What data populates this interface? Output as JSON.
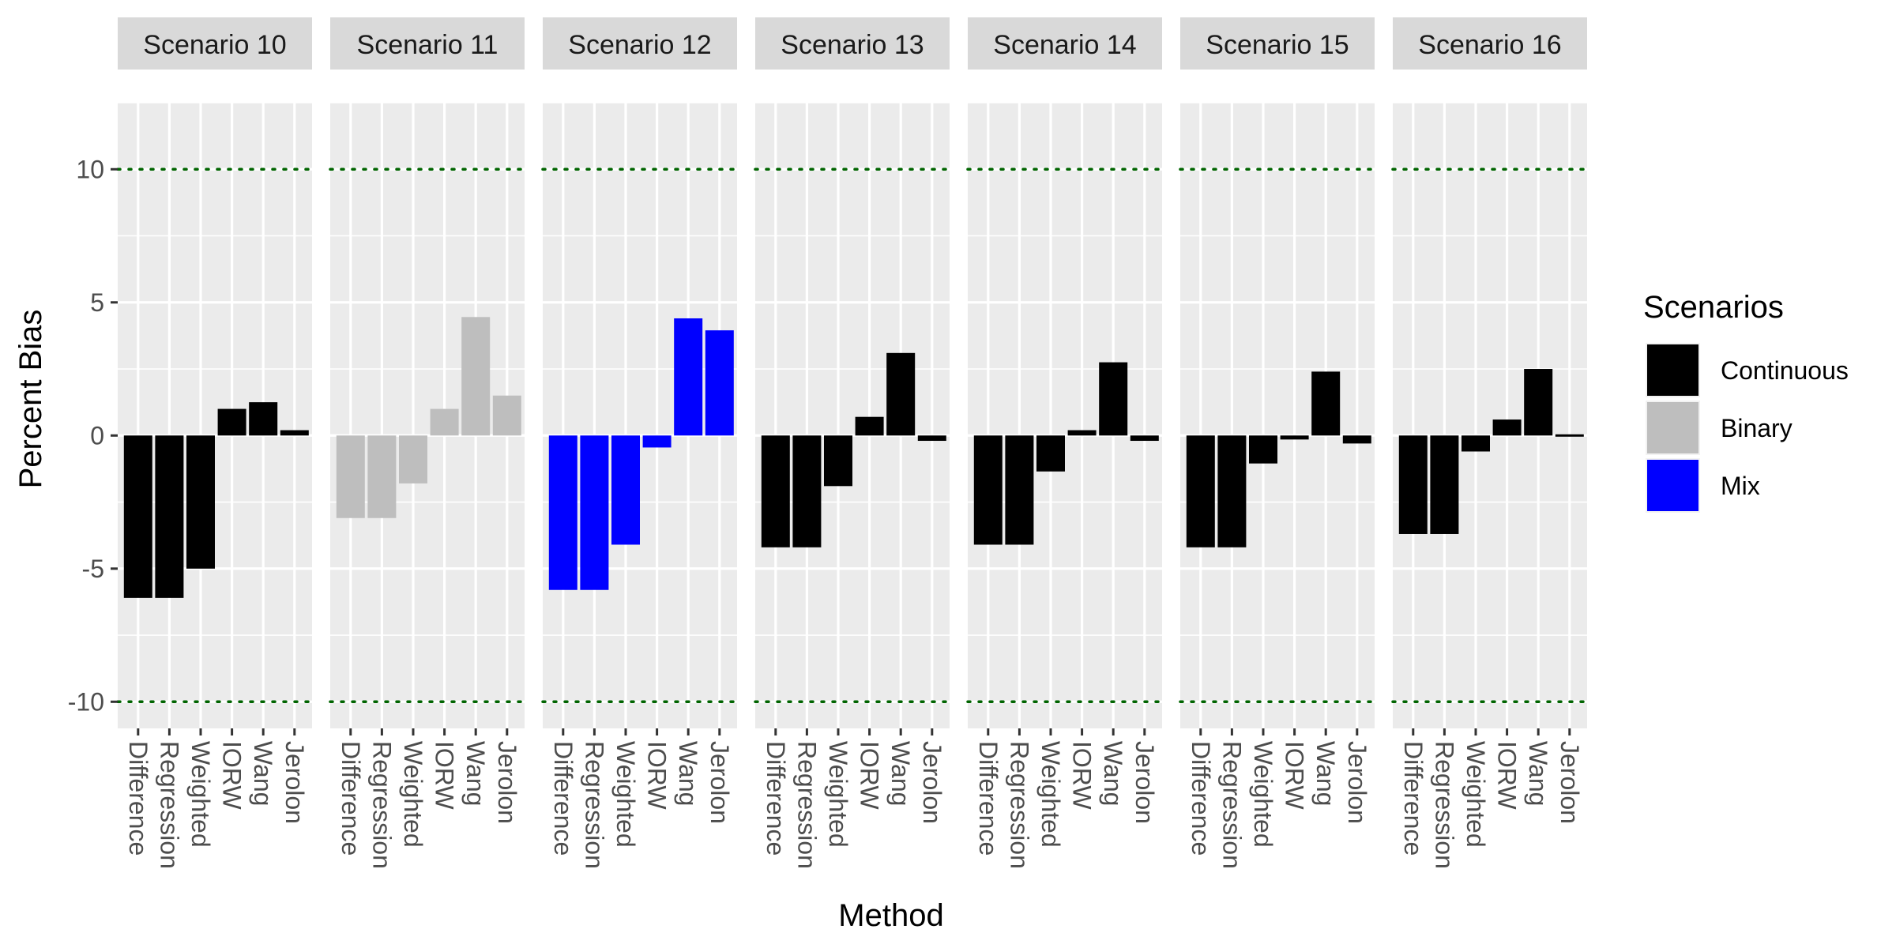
{
  "chart_data": {
    "type": "bar",
    "faceted": true,
    "xlabel": "Method",
    "ylabel": "Percent Bias",
    "ylim": [
      -11,
      12.5
    ],
    "yticks": [
      -10,
      -5,
      0,
      5,
      10
    ],
    "ytick_labels": [
      "-10",
      "-5",
      "0",
      "5",
      "10"
    ],
    "reference_lines": [
      10,
      -10
    ],
    "reference_line_color": "#006400",
    "categories": [
      "Difference",
      "Regression",
      "Weighted",
      "IORW",
      "Wang",
      "Jerolon"
    ],
    "legend": {
      "title": "Scenarios",
      "entries": [
        {
          "label": "Continuous",
          "color": "#000000"
        },
        {
          "label": "Binary",
          "color": "#BEBEBE"
        },
        {
          "label": "Mix",
          "color": "#0000FF"
        }
      ]
    },
    "panels": [
      {
        "label": "Scenario 10",
        "type": "Continuous",
        "values": [
          -6.1,
          -6.1,
          -5.0,
          1.0,
          1.25,
          0.2
        ]
      },
      {
        "label": "Scenario 11",
        "type": "Binary",
        "values": [
          -3.1,
          -3.1,
          -1.8,
          1.0,
          4.45,
          1.5
        ]
      },
      {
        "label": "Scenario 12",
        "type": "Mix",
        "values": [
          -5.8,
          -5.8,
          -4.1,
          -0.45,
          4.4,
          3.95
        ]
      },
      {
        "label": "Scenario 13",
        "type": "Continuous",
        "values": [
          -4.2,
          -4.2,
          -1.9,
          0.7,
          3.1,
          -0.2
        ]
      },
      {
        "label": "Scenario 14",
        "type": "Continuous",
        "values": [
          -4.1,
          -4.1,
          -1.35,
          0.2,
          2.75,
          -0.2
        ]
      },
      {
        "label": "Scenario 15",
        "type": "Continuous",
        "values": [
          -4.2,
          -4.2,
          -1.05,
          -0.15,
          2.4,
          -0.3
        ]
      },
      {
        "label": "Scenario 16",
        "type": "Continuous",
        "values": [
          -3.7,
          -3.7,
          -0.6,
          0.6,
          2.5,
          0.0
        ]
      }
    ]
  }
}
